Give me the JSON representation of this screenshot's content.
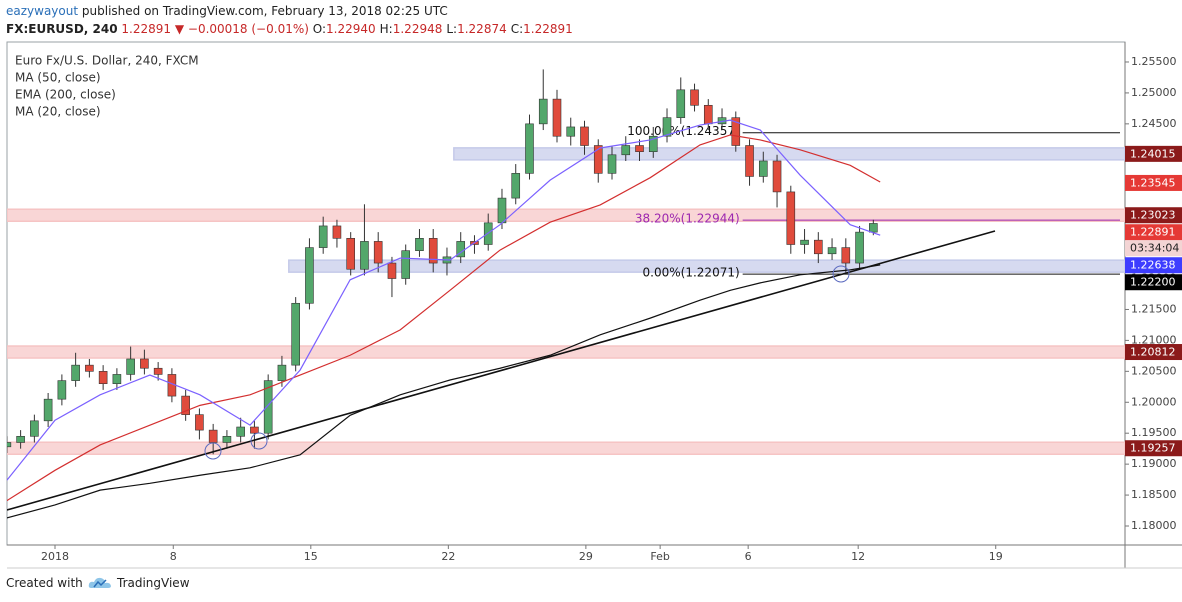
{
  "header": {
    "author": "eazywayout",
    "published": "published on TradingView.com, February 13, 2018 02:25 UTC",
    "symbol": "FX:EURUSD, 240",
    "price": "1.22891",
    "change": "▼ −0.00018 (−0.01%)",
    "ohlc": [
      {
        "key": "O:",
        "value": "1.22940"
      },
      {
        "key": "H:",
        "value": "1.22948"
      },
      {
        "key": "L:",
        "value": "1.22874"
      },
      {
        "key": "C:",
        "value": "1.22891"
      }
    ]
  },
  "chart_data": {
    "type": "candlestick",
    "title": "Euro Fx/U.S. Dollar, 240, FXCM",
    "up_color": "#53a76b",
    "down_color": "#e04b3c",
    "x": [
      -1.75,
      -1.25,
      -0.75,
      -0.25,
      0.25,
      0.75,
      1.25,
      1.75,
      2.25,
      2.75,
      3.25,
      3.75,
      4.25,
      4.75,
      5.25,
      5.75,
      6.25,
      6.75,
      7.25,
      7.75,
      8.25,
      8.75,
      9.25,
      9.75,
      10.25,
      10.75,
      11.25,
      11.75,
      12.25,
      12.75,
      13.25,
      13.75,
      14.25,
      14.75,
      15.25,
      15.75,
      16.25,
      16.75,
      17.25,
      17.75,
      18.25,
      18.75,
      19.25,
      19.75,
      20.25,
      20.75,
      21.25,
      21.75,
      22.25,
      22.75,
      23.25,
      23.75,
      24.25,
      24.75,
      25.25,
      25.75,
      26.25,
      26.75,
      27.25,
      27.75,
      28.25,
      28.75,
      29.25,
      29.75
    ],
    "open": [
      1.1928,
      1.1935,
      1.1945,
      1.197,
      1.2005,
      1.2035,
      1.206,
      1.205,
      1.203,
      1.2045,
      1.207,
      1.2055,
      1.2045,
      1.201,
      1.198,
      1.1955,
      1.1935,
      1.1945,
      1.196,
      1.195,
      1.2035,
      1.206,
      1.216,
      1.225,
      1.2285,
      1.2265,
      1.2215,
      1.226,
      1.2225,
      1.22,
      1.2245,
      1.2265,
      1.2225,
      1.2235,
      1.226,
      1.2255,
      1.229,
      1.233,
      1.237,
      1.245,
      1.249,
      1.243,
      1.2445,
      1.2415,
      1.237,
      1.24,
      1.2415,
      1.2405,
      1.243,
      1.246,
      1.2505,
      1.248,
      1.245,
      1.246,
      1.2415,
      1.2365,
      1.239,
      1.234,
      1.2255,
      1.2262,
      1.224,
      1.225,
      1.2225,
      1.2275
    ],
    "high": [
      1.1945,
      1.1955,
      1.198,
      1.2015,
      1.2045,
      1.208,
      1.207,
      1.206,
      1.2055,
      1.209,
      1.2085,
      1.2065,
      1.2055,
      1.202,
      1.199,
      1.1965,
      1.1955,
      1.1975,
      1.197,
      1.2045,
      1.2075,
      1.217,
      1.2265,
      1.23,
      1.2295,
      1.2275,
      1.232,
      1.2275,
      1.2235,
      1.2255,
      1.228,
      1.228,
      1.225,
      1.2275,
      1.227,
      1.2305,
      1.2345,
      1.2385,
      1.2465,
      1.2538,
      1.2505,
      1.246,
      1.2455,
      1.2425,
      1.2415,
      1.243,
      1.2425,
      1.2445,
      1.2475,
      1.2525,
      1.2515,
      1.249,
      1.2475,
      1.247,
      1.2425,
      1.2405,
      1.24,
      1.235,
      1.228,
      1.2275,
      1.2265,
      1.2265,
      1.2285,
      1.2295
    ],
    "low": [
      1.1918,
      1.1925,
      1.1935,
      1.196,
      1.1995,
      1.2025,
      1.204,
      1.202,
      1.202,
      1.2035,
      1.2045,
      1.2035,
      1.2,
      1.197,
      1.194,
      1.1916,
      1.1925,
      1.1935,
      1.1925,
      1.194,
      1.2025,
      1.205,
      1.215,
      1.224,
      1.225,
      1.2205,
      1.2205,
      1.221,
      1.217,
      1.219,
      1.2235,
      1.221,
      1.2205,
      1.2225,
      1.224,
      1.2245,
      1.228,
      1.232,
      1.236,
      1.244,
      1.242,
      1.2415,
      1.24,
      1.2355,
      1.236,
      1.239,
      1.239,
      1.2395,
      1.242,
      1.245,
      1.247,
      1.244,
      1.244,
      1.2405,
      1.235,
      1.2355,
      1.2315,
      1.224,
      1.224,
      1.2225,
      1.223,
      1.221,
      1.2215,
      1.227
    ],
    "close": [
      1.1935,
      1.1945,
      1.197,
      1.2005,
      1.2035,
      1.206,
      1.205,
      1.203,
      1.2045,
      1.207,
      1.2055,
      1.2045,
      1.201,
      1.198,
      1.1955,
      1.1935,
      1.1945,
      1.196,
      1.195,
      1.2035,
      1.206,
      1.216,
      1.225,
      1.2285,
      1.2265,
      1.2215,
      1.226,
      1.2225,
      1.22,
      1.2245,
      1.2265,
      1.2225,
      1.2235,
      1.226,
      1.2255,
      1.229,
      1.233,
      1.237,
      1.245,
      1.249,
      1.243,
      1.2445,
      1.2415,
      1.237,
      1.24,
      1.2415,
      1.2405,
      1.243,
      1.246,
      1.2505,
      1.248,
      1.245,
      1.246,
      1.2415,
      1.2365,
      1.239,
      1.234,
      1.2255,
      1.2262,
      1.224,
      1.225,
      1.2225,
      1.2275,
      1.2289
    ],
    "series": [
      {
        "name": "MA (50, close)",
        "color": "#d32f2f",
        "x": [
          -1.75,
          0,
          1.64,
          3.45,
          5.27,
          7.09,
          8.91,
          10.73,
          12.55,
          14.36,
          16.18,
          18,
          19.82,
          21.64,
          23.45,
          24.55,
          25.64,
          27.09,
          28.91,
          30
        ],
        "values": [
          1.1841,
          1.189,
          1.1931,
          1.1963,
          1.1995,
          1.2012,
          1.2044,
          1.2076,
          1.2117,
          1.2181,
          1.2246,
          1.2291,
          1.2319,
          1.2363,
          1.2416,
          1.2432,
          1.2424,
          1.2408,
          1.2383,
          1.2356
        ]
      },
      {
        "name": "EMA (200, close)",
        "color": "#111111",
        "x": [
          -1.75,
          0,
          1.64,
          3.45,
          5.27,
          7.09,
          8.91,
          10.73,
          12.55,
          14.36,
          16.18,
          18,
          19.82,
          21.64,
          23.45,
          24.55,
          25.64,
          27.09,
          28.91,
          30
        ],
        "values": [
          1.1813,
          1.1834,
          1.1858,
          1.1869,
          1.1882,
          1.1894,
          1.1915,
          1.1979,
          1.2012,
          1.2036,
          1.2055,
          1.2076,
          1.2109,
          1.2136,
          1.2165,
          1.2181,
          1.2193,
          1.2206,
          1.2214,
          1.2222
        ]
      },
      {
        "name": "MA (20, close)",
        "color": "#7b61ff",
        "x": [
          -1.75,
          0,
          1.64,
          3.45,
          5.27,
          7.09,
          8.91,
          10.73,
          12.55,
          14.36,
          16.18,
          18,
          19.82,
          21.64,
          23.45,
          24.55,
          25.64,
          27.09,
          28.91,
          30
        ],
        "values": [
          1.1874,
          1.1971,
          1.2012,
          1.2044,
          1.2012,
          1.1963,
          1.2052,
          1.2198,
          1.2233,
          1.223,
          1.2287,
          1.2359,
          1.2411,
          1.2424,
          1.2448,
          1.2456,
          1.244,
          1.2367,
          1.2287,
          1.227
        ]
      }
    ],
    "xlim": [
      -1.745,
      38.9
    ],
    "xticks": [
      {
        "value": 0,
        "label": "2018"
      },
      {
        "value": 4.3,
        "label": "8"
      },
      {
        "value": 9.3,
        "label": "15"
      },
      {
        "value": 14.3,
        "label": "22"
      },
      {
        "value": 19.3,
        "label": "29"
      },
      {
        "value": 22.0,
        "label": "Feb"
      },
      {
        "value": 25.2,
        "label": "6"
      },
      {
        "value": 29.2,
        "label": "12"
      },
      {
        "value": 34.2,
        "label": "19"
      }
    ],
    "ylim": [
      1.17693,
      1.25823
    ],
    "yticks": [
      {
        "value": 1.18,
        "label": "1.18000"
      },
      {
        "value": 1.185,
        "label": "1.18500"
      },
      {
        "value": 1.19,
        "label": "1.19000"
      },
      {
        "value": 1.195,
        "label": "1.19500"
      },
      {
        "value": 1.2,
        "label": "1.20000"
      },
      {
        "value": 1.205,
        "label": "1.20500"
      },
      {
        "value": 1.21,
        "label": "1.21000"
      },
      {
        "value": 1.215,
        "label": "1.21500"
      },
      {
        "value": 1.22,
        "label": "1.22000"
      },
      {
        "value": 1.225,
        "label": "1.22500"
      },
      {
        "value": 1.23,
        "label": "1.23000"
      },
      {
        "value": 1.235,
        "label": "1.23500"
      },
      {
        "value": 1.24,
        "label": "1.24000"
      },
      {
        "value": 1.245,
        "label": "1.24500"
      },
      {
        "value": 1.25,
        "label": "1.25000"
      },
      {
        "value": 1.255,
        "label": "1.25500"
      }
    ],
    "zones": [
      {
        "value": 1.24015,
        "from": 14.5,
        "color": "#c5cae9"
      },
      {
        "value": 1.23023,
        "from": -1.745,
        "color": "#f6c4c4"
      },
      {
        "value": 1.222,
        "from": 8.5,
        "color": "#c5cae9"
      },
      {
        "value": 1.20812,
        "from": -1.745,
        "color": "#f6c4c4"
      },
      {
        "value": 1.19257,
        "from": -1.745,
        "color": "#f6c4c4"
      }
    ],
    "fib_levels": [
      {
        "value": 1.24357,
        "label": "100.00%(1.24357)",
        "color": "#111111"
      },
      {
        "value": 1.22944,
        "label": "38.20%(1.22944)",
        "color": "#9c27b0"
      },
      {
        "value": 1.22071,
        "label": "0.00%(1.22071)",
        "color": "#111111"
      }
    ],
    "price_labels": [
      {
        "value": 1.24015,
        "label": "1.24015",
        "color": "#8b1a1a"
      },
      {
        "value": 1.23545,
        "label": "1.23545",
        "color": "#e53935"
      },
      {
        "value": 1.23023,
        "label": "1.23023",
        "color": "#8b1a1a"
      },
      {
        "value": 1.22891,
        "label": "1.22891",
        "color": "#e53935",
        "countdown": "03:34:04"
      },
      {
        "value": 1.22638,
        "label": "1.22638",
        "color": "#3d3dff"
      },
      {
        "value": 1.222,
        "label": "1.22200",
        "color": "#000000"
      },
      {
        "value": 1.20812,
        "label": "1.20812",
        "color": "#8b1a1a"
      },
      {
        "value": 1.19257,
        "label": "1.19257",
        "color": "#8b1a1a"
      }
    ]
  },
  "footer": {
    "created": "Created with",
    "brand": "TradingView"
  }
}
